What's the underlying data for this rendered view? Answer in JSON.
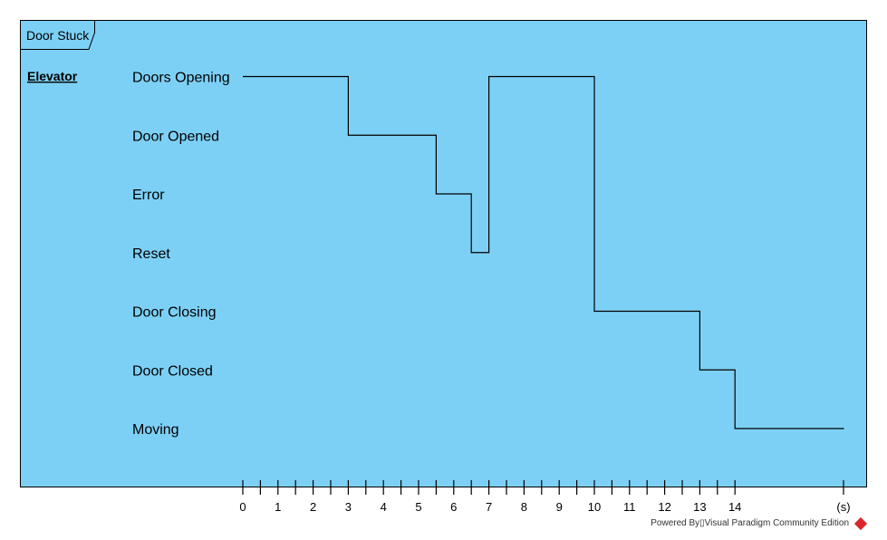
{
  "frame_title": "Door Stuck",
  "lifeline": "Elevator",
  "states": [
    "Doors Opening",
    "Door Opened",
    "Error",
    "Reset",
    "Door Closing",
    "Door Closed",
    "Moving"
  ],
  "timeline": {
    "unit_label": "(s)",
    "major_ticks": [
      0,
      1,
      2,
      3,
      4,
      5,
      6,
      7,
      8,
      9,
      10,
      11,
      12,
      13,
      14
    ],
    "segments": [
      {
        "state": 0,
        "from": 0,
        "to": 3
      },
      {
        "state": 1,
        "from": 3,
        "to": 5.5
      },
      {
        "state": 2,
        "from": 5.5,
        "to": 6.5
      },
      {
        "state": 3,
        "from": 6.5,
        "to": 7
      },
      {
        "state": 0,
        "from": 7,
        "to": 10
      },
      {
        "state": 4,
        "from": 10,
        "to": 13
      },
      {
        "state": 5,
        "from": 13,
        "to": 14
      },
      {
        "state": 6,
        "from": 14,
        "to": 17.1
      }
    ]
  },
  "watermark": "Powered By▯Visual Paradigm Community Edition"
}
